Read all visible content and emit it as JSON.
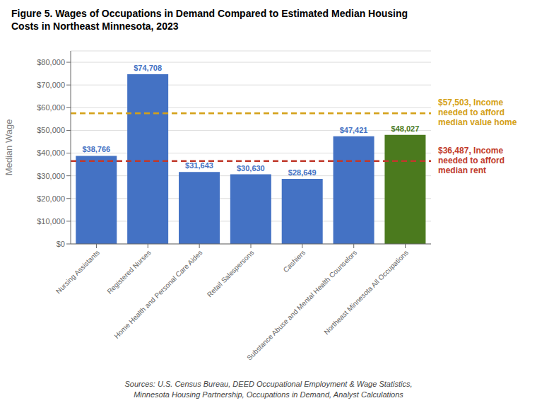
{
  "chart_data": {
    "type": "bar",
    "title": "Figure 5. Wages of Occupations in Demand Compared to Estimated Median Housing\nCosts in Northeast Minnesota, 2023",
    "categories": [
      "Nursing Assistants",
      "Registered Nurses",
      "Home Health and Personal Care Aides",
      "Retail Salespersons",
      "Cashiers",
      "Substance Abuse and Mental Health Counselors",
      "Northeast Minnesota All Occupations"
    ],
    "values": [
      38766,
      74708,
      31643,
      30630,
      28649,
      47421,
      48027
    ],
    "value_labels": [
      "$38,766",
      "$74,708",
      "$31,643",
      "$30,630",
      "$28,649",
      "$47,421",
      "$48,027"
    ],
    "data_labels": true,
    "colors": [
      "#4472C4",
      "#4472C4",
      "#4472C4",
      "#4472C4",
      "#4472C4",
      "#4472C4",
      "#4B7A1E"
    ],
    "ylabel": "Median Wage",
    "ylim": [
      0,
      85000
    ],
    "yticks": [
      {
        "value": 0,
        "label": "$0"
      },
      {
        "value": 10000,
        "label": "$10,000"
      },
      {
        "value": 20000,
        "label": "$20,000"
      },
      {
        "value": 30000,
        "label": "$30,000"
      },
      {
        "value": 40000,
        "label": "$40,000"
      },
      {
        "value": 50000,
        "label": "$50,000"
      },
      {
        "value": 60000,
        "label": "$60,000"
      },
      {
        "value": 70000,
        "label": "$70,000"
      },
      {
        "value": 80000,
        "label": "$80,000"
      }
    ],
    "grid": true,
    "reference_lines": [
      {
        "value": 57503,
        "label": "$57,503, Income\nneeded to afford\nmedian value home",
        "color": "#D4A017",
        "line_style": "dashed"
      },
      {
        "value": 36487,
        "label": "$36,487, Income\nneeded to afford\nmedian rent",
        "color": "#C0392B",
        "line_style": "dashed"
      }
    ],
    "sources": "Sources: U.S. Census Bureau, DEED Occupational Employment & Wage Statistics,\nMinnesota Housing Partnership, Occupations in Demand, Analyst Calculations"
  }
}
